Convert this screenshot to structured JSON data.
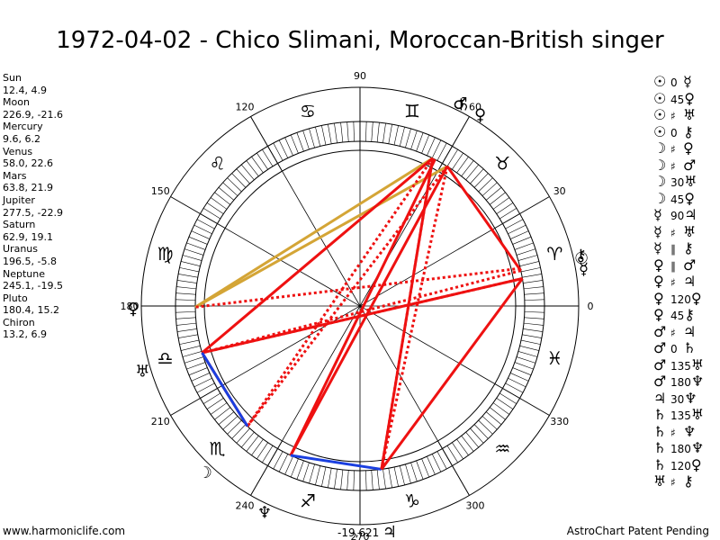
{
  "title": "1972-04-02 - Chico Slimani, Moroccan-British singer",
  "planets": [
    {
      "name": "Sun",
      "coords": "12.4, 4.9"
    },
    {
      "name": "Moon",
      "coords": "226.9, -21.6"
    },
    {
      "name": "Mercury",
      "coords": "9.6, 6.2"
    },
    {
      "name": "Venus",
      "coords": "58.0, 22.6"
    },
    {
      "name": "Mars",
      "coords": "63.8, 21.9"
    },
    {
      "name": "Jupiter",
      "coords": "277.5, -22.9"
    },
    {
      "name": "Saturn",
      "coords": "62.9, 19.1"
    },
    {
      "name": "Uranus",
      "coords": "196.5, -5.8"
    },
    {
      "name": "Neptune",
      "coords": "245.1, -19.5"
    },
    {
      "name": "Pluto",
      "coords": "180.4, 15.2"
    },
    {
      "name": "Chiron",
      "coords": "13.2, 6.9"
    }
  ],
  "aspects": [
    {
      "a": "☉",
      "sym": "0",
      "b": "☿"
    },
    {
      "a": "☉",
      "sym": "45",
      "b": "♀"
    },
    {
      "a": "☉",
      "sym": "♯",
      "b": "♅"
    },
    {
      "a": "☉",
      "sym": "0",
      "b": "⚷"
    },
    {
      "a": "☽",
      "sym": "♯",
      "b": "♀"
    },
    {
      "a": "☽",
      "sym": "♯",
      "b": "♂"
    },
    {
      "a": "☽",
      "sym": "30",
      "b": "♅"
    },
    {
      "a": "☽",
      "sym": "45",
      "b": "♀"
    },
    {
      "a": "☿",
      "sym": "90",
      "b": "♃"
    },
    {
      "a": "☿",
      "sym": "♯",
      "b": "♅"
    },
    {
      "a": "☿",
      "sym": "∥",
      "b": "⚷"
    },
    {
      "a": "♀",
      "sym": "∥",
      "b": "♂"
    },
    {
      "a": "♀",
      "sym": "♯",
      "b": "♃"
    },
    {
      "a": "♀",
      "sym": "120",
      "b": "♀"
    },
    {
      "a": "♀",
      "sym": "45",
      "b": "⚷"
    },
    {
      "a": "♂",
      "sym": "♯",
      "b": "♃"
    },
    {
      "a": "♂",
      "sym": "0",
      "b": "♄"
    },
    {
      "a": "♂",
      "sym": "135",
      "b": "♅"
    },
    {
      "a": "♂",
      "sym": "180",
      "b": "♆"
    },
    {
      "a": "♃",
      "sym": "30",
      "b": "♆"
    },
    {
      "a": "♄",
      "sym": "135",
      "b": "♅"
    },
    {
      "a": "♄",
      "sym": "♯",
      "b": "♆"
    },
    {
      "a": "♄",
      "sym": "180",
      "b": "♆"
    },
    {
      "a": "♄",
      "sym": "120",
      "b": "♀"
    },
    {
      "a": "♅",
      "sym": "♯",
      "b": "⚷"
    }
  ],
  "wheel": {
    "degree_labels": [
      "0",
      "30",
      "60",
      "90",
      "120",
      "150",
      "180",
      "210",
      "240",
      "270",
      "300",
      "330"
    ],
    "signs": [
      "♈",
      "♉",
      "♊",
      "♋",
      "♌",
      "♍",
      "♎",
      "♏",
      "♐",
      "♑",
      "♒",
      "♓"
    ],
    "planet_glyphs": [
      {
        "glyph": "♂",
        "lon": 63.8
      },
      {
        "glyph": "♀",
        "lon": 58.0
      },
      {
        "glyph": "♄",
        "lon": 62.9
      },
      {
        "glyph": "☉",
        "lon": 12.4
      },
      {
        "glyph": "☿",
        "lon": 9.6
      },
      {
        "glyph": "⚷",
        "lon": 13.2
      },
      {
        "glyph": "♀",
        "lon": 180.4
      },
      {
        "glyph": "♅",
        "lon": 196.5
      },
      {
        "glyph": "☽",
        "lon": 226.9
      },
      {
        "glyph": "♆",
        "lon": 245.1
      },
      {
        "glyph": "♃",
        "lon": 277.5
      }
    ],
    "aspect_lines": [
      {
        "from": 63.8,
        "to": 180.4,
        "color": "#d4a536",
        "style": "solid"
      },
      {
        "from": 58.0,
        "to": 180.4,
        "color": "#d4a536",
        "style": "solid"
      },
      {
        "from": 63.8,
        "to": 196.5,
        "color": "#ee1111",
        "style": "solid"
      },
      {
        "from": 62.9,
        "to": 245.1,
        "color": "#ee1111",
        "style": "solid"
      },
      {
        "from": 58.0,
        "to": 245.1,
        "color": "#ee1111",
        "style": "solid"
      },
      {
        "from": 58.0,
        "to": 226.9,
        "color": "#ee1111",
        "style": "dotted"
      },
      {
        "from": 63.8,
        "to": 226.9,
        "color": "#ee1111",
        "style": "dotted"
      },
      {
        "from": 58.0,
        "to": 277.5,
        "color": "#ee1111",
        "style": "dotted"
      },
      {
        "from": 63.8,
        "to": 277.5,
        "color": "#ee1111",
        "style": "dotted"
      },
      {
        "from": 12.4,
        "to": 196.5,
        "color": "#ee1111",
        "style": "dotted"
      },
      {
        "from": 9.6,
        "to": 196.5,
        "color": "#ee1111",
        "style": "dotted"
      },
      {
        "from": 13.2,
        "to": 180.4,
        "color": "#ee1111",
        "style": "dotted"
      },
      {
        "from": 9.6,
        "to": 277.5,
        "color": "#ee1111",
        "style": "solid"
      },
      {
        "from": 12.4,
        "to": 58.0,
        "color": "#ee1111",
        "style": "solid"
      },
      {
        "from": 9.6,
        "to": 196.5,
        "color": "#ee1111",
        "style": "solid"
      },
      {
        "from": 196.5,
        "to": 226.9,
        "color": "#ee1111",
        "style": "solid"
      },
      {
        "from": 196.5,
        "to": 226.9,
        "color": "#1a3fe0",
        "style": "solid"
      },
      {
        "from": 245.1,
        "to": 277.5,
        "color": "#1a3fe0",
        "style": "solid"
      },
      {
        "from": 277.5,
        "to": 63.8,
        "color": "#ee1111",
        "style": "solid"
      }
    ]
  },
  "footer": {
    "left": "www.harmoniclife.com",
    "center": "-19,621",
    "right": "AstroChart Patent Pending"
  },
  "colors": {
    "solid_red": "#ee1111",
    "gold": "#d4a536",
    "blue": "#1a3fe0"
  }
}
